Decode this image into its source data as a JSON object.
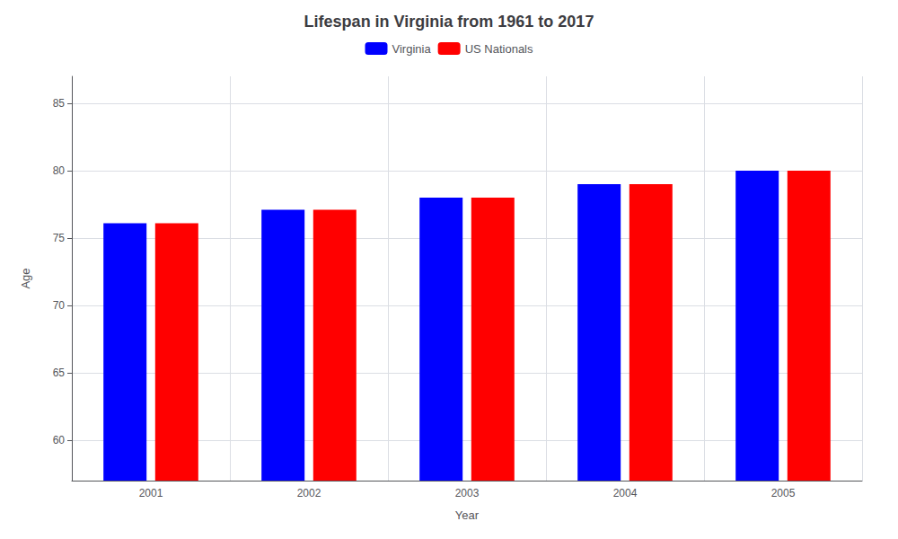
{
  "chart_data": {
    "type": "bar",
    "title": "Lifespan in Virginia from 1961 to 2017",
    "xlabel": "Year",
    "ylabel": "Age",
    "categories": [
      "2001",
      "2002",
      "2003",
      "2004",
      "2005"
    ],
    "series": [
      {
        "name": "Virginia",
        "color": "#0000ff",
        "values": [
          76.1,
          77.1,
          78.0,
          79.0,
          80.0
        ]
      },
      {
        "name": "US Nationals",
        "color": "#ff0000",
        "values": [
          76.1,
          77.1,
          78.0,
          79.0,
          80.0
        ]
      }
    ],
    "ylim": [
      57,
      87
    ],
    "yticks": [
      60,
      65,
      70,
      75,
      80,
      85
    ],
    "grid": true,
    "legend": "top"
  }
}
